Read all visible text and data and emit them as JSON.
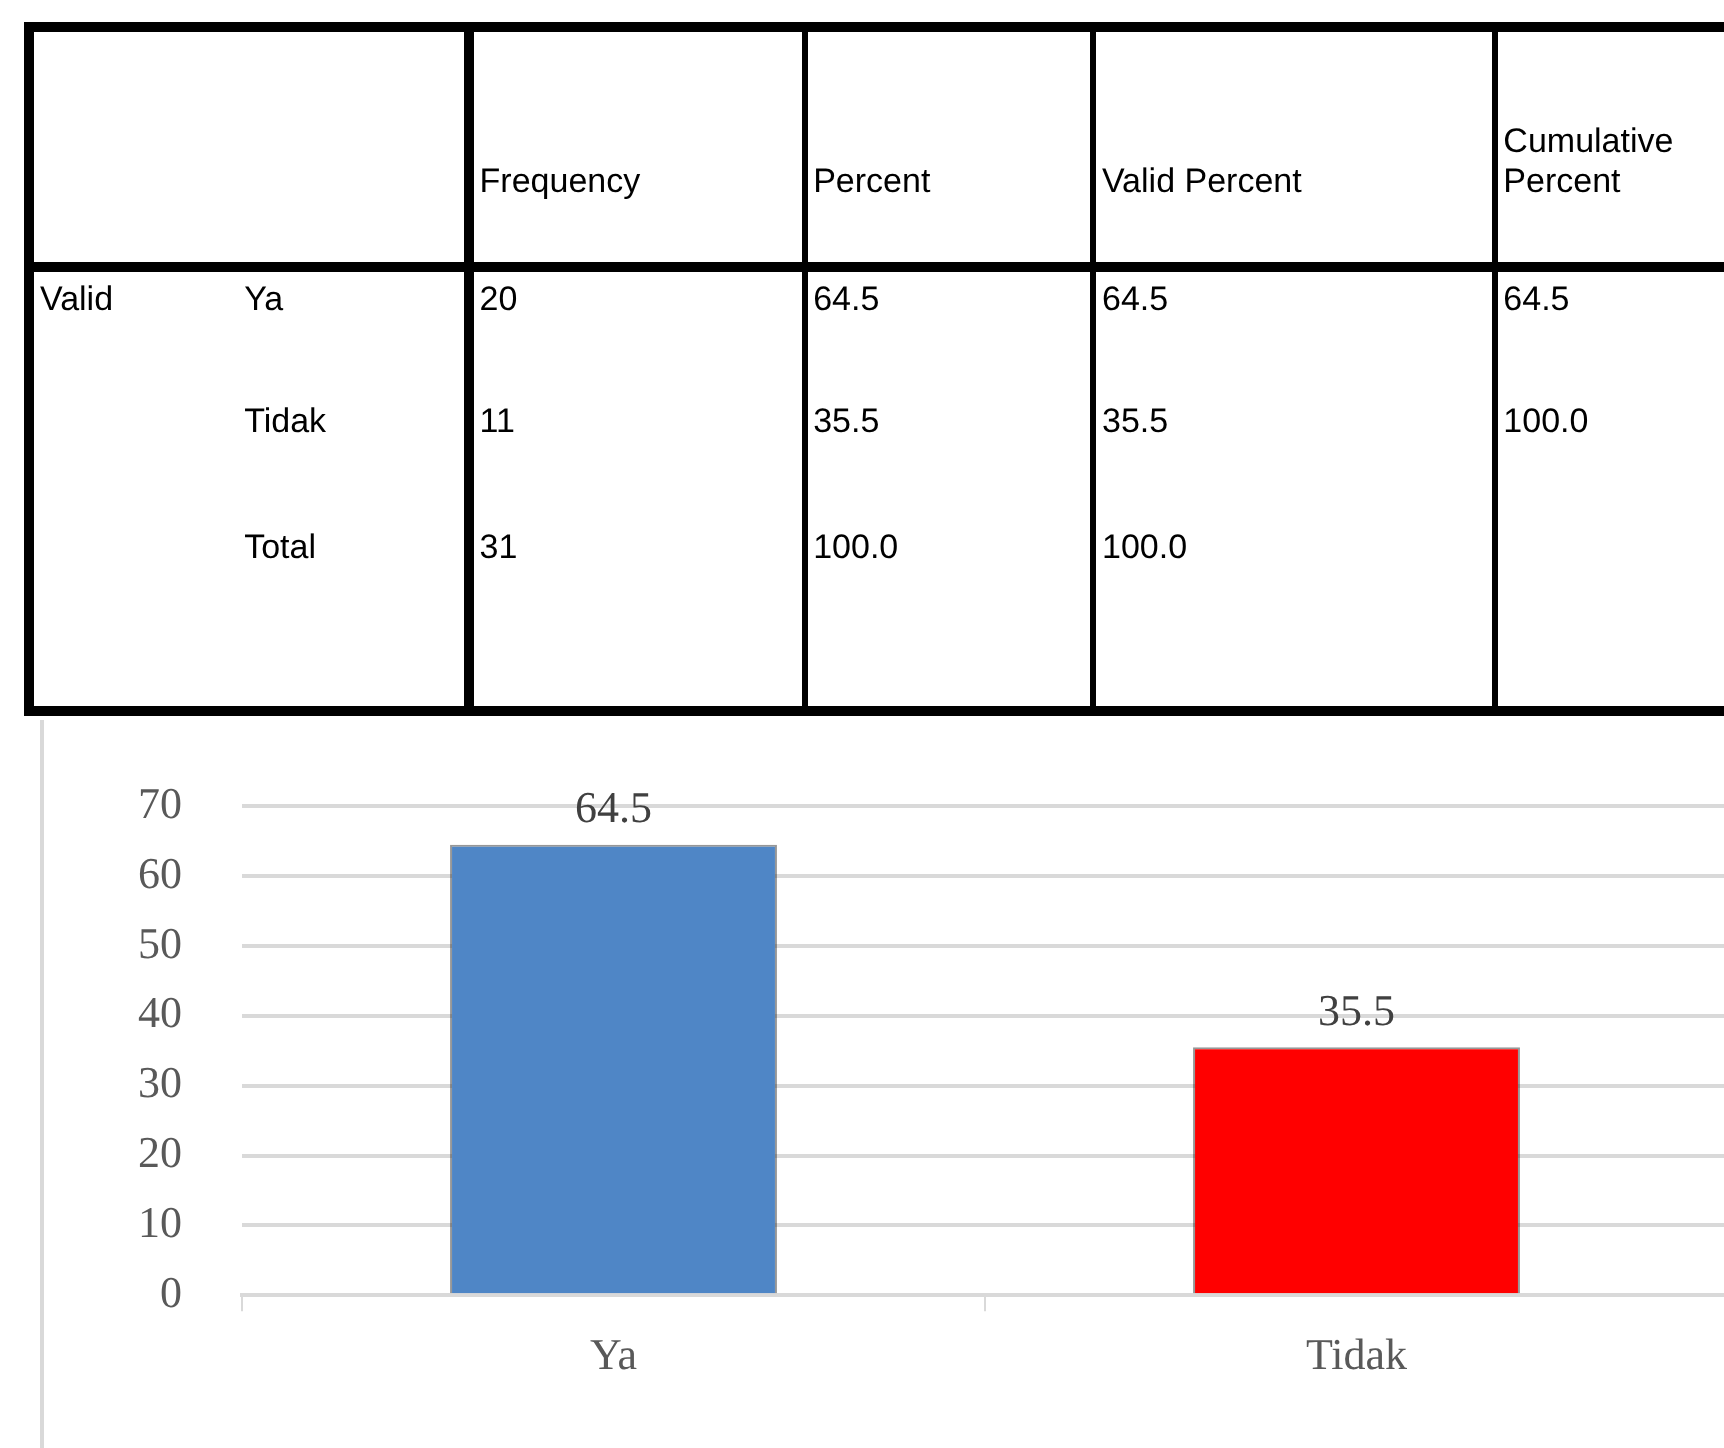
{
  "chart_data": [
    {
      "type": "other",
      "categories": [
        "Frequency",
        "Percent",
        "Valid Percent",
        "Cumulative Percent"
      ],
      "y_categories": [
        "Valid",
        null,
        null
      ],
      "y2_categories": [
        "Ya",
        "Tidak",
        "Total"
      ],
      "cell_labels": [
        [
          "20",
          "64.5",
          "64.5",
          "64.5"
        ],
        [
          "11",
          "35.5",
          "35.5",
          "100.0"
        ],
        [
          "31",
          "100.0",
          "100.0",
          null
        ]
      ]
    },
    {
      "type": "bar",
      "categories": [
        "Ya",
        "Tidak"
      ],
      "values": [
        64.5,
        35.5
      ],
      "colors": [
        "#4f86c6",
        "#ff0000"
      ],
      "ylim": [
        0,
        70
      ],
      "yticks": [
        0,
        10,
        20,
        30,
        40,
        50,
        60,
        70
      ],
      "grid": "y",
      "data_labels": true
    }
  ]
}
